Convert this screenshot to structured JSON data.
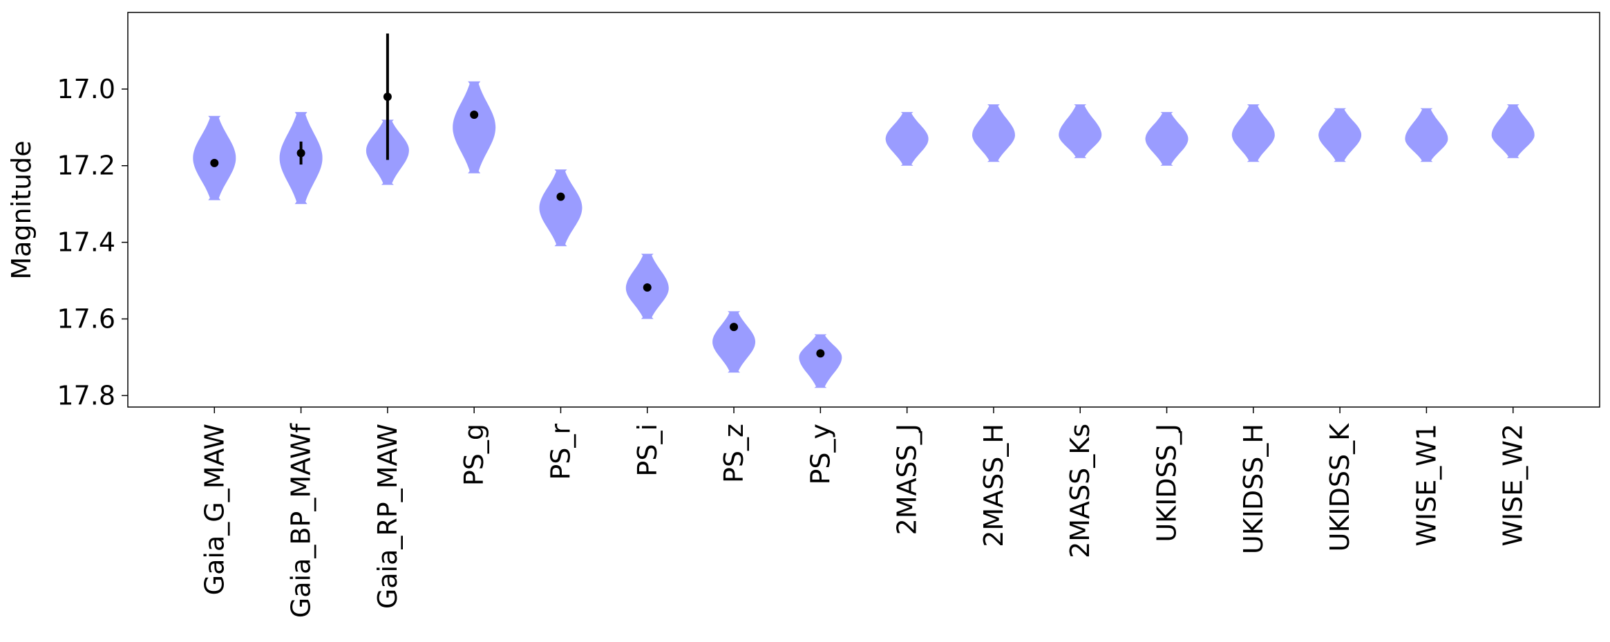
{
  "chart_data": {
    "type": "violin",
    "ylabel": "Magnitude",
    "ylim": [
      17.83,
      16.8
    ],
    "y_inverted": true,
    "yticks": [
      "17.0",
      "17.2",
      "17.4",
      "17.6",
      "17.8"
    ],
    "categories": [
      "Gaia_G_MAW",
      "Gaia_BP_MAWf",
      "Gaia_RP_MAW",
      "PS_g",
      "PS_r",
      "PS_i",
      "PS_z",
      "PS_y",
      "2MASS_J",
      "2MASS_H",
      "2MASS_Ks",
      "UKIDSS_J",
      "UKIDSS_H",
      "UKIDSS_K",
      "WISE_W1",
      "WISE_W2"
    ],
    "violins": [
      {
        "category": "Gaia_G_MAW",
        "y_top": 17.07,
        "y_bottom": 17.29,
        "y_widest": 17.18
      },
      {
        "category": "Gaia_BP_MAWf",
        "y_top": 17.06,
        "y_bottom": 17.3,
        "y_widest": 17.18
      },
      {
        "category": "Gaia_RP_MAW",
        "y_top": 17.08,
        "y_bottom": 17.25,
        "y_widest": 17.16
      },
      {
        "category": "PS_g",
        "y_top": 16.98,
        "y_bottom": 17.22,
        "y_widest": 17.1
      },
      {
        "category": "PS_r",
        "y_top": 17.21,
        "y_bottom": 17.41,
        "y_widest": 17.31
      },
      {
        "category": "PS_i",
        "y_top": 17.43,
        "y_bottom": 17.6,
        "y_widest": 17.52
      },
      {
        "category": "PS_z",
        "y_top": 17.58,
        "y_bottom": 17.74,
        "y_widest": 17.66
      },
      {
        "category": "PS_y",
        "y_top": 17.64,
        "y_bottom": 17.78,
        "y_widest": 17.7
      },
      {
        "category": "2MASS_J",
        "y_top": 17.06,
        "y_bottom": 17.2,
        "y_widest": 17.13
      },
      {
        "category": "2MASS_H",
        "y_top": 17.04,
        "y_bottom": 17.19,
        "y_widest": 17.12
      },
      {
        "category": "2MASS_Ks",
        "y_top": 17.04,
        "y_bottom": 17.18,
        "y_widest": 17.12
      },
      {
        "category": "UKIDSS_J",
        "y_top": 17.06,
        "y_bottom": 17.2,
        "y_widest": 17.13
      },
      {
        "category": "UKIDSS_H",
        "y_top": 17.04,
        "y_bottom": 17.19,
        "y_widest": 17.12
      },
      {
        "category": "UKIDSS_K",
        "y_top": 17.05,
        "y_bottom": 17.19,
        "y_widest": 17.12
      },
      {
        "category": "WISE_W1",
        "y_top": 17.05,
        "y_bottom": 17.19,
        "y_widest": 17.13
      },
      {
        "category": "WISE_W2",
        "y_top": 17.04,
        "y_bottom": 17.18,
        "y_widest": 17.12
      }
    ],
    "observations": [
      {
        "category": "Gaia_G_MAW",
        "value": 17.193,
        "error": 0.01
      },
      {
        "category": "Gaia_BP_MAWf",
        "value": 17.167,
        "error": 0.03
      },
      {
        "category": "Gaia_RP_MAW",
        "value": 17.02,
        "error": 0.165
      },
      {
        "category": "PS_g",
        "value": 17.067,
        "error": 0.008
      },
      {
        "category": "PS_r",
        "value": 17.281,
        "error": 0.008
      },
      {
        "category": "PS_i",
        "value": 17.518,
        "error": 0.008
      },
      {
        "category": "PS_z",
        "value": 17.621,
        "error": 0.008
      },
      {
        "category": "PS_y",
        "value": 17.69,
        "error": 0.01
      }
    ],
    "violin_color": "#9a9cff",
    "marker_color": "#000000",
    "grid": false
  }
}
